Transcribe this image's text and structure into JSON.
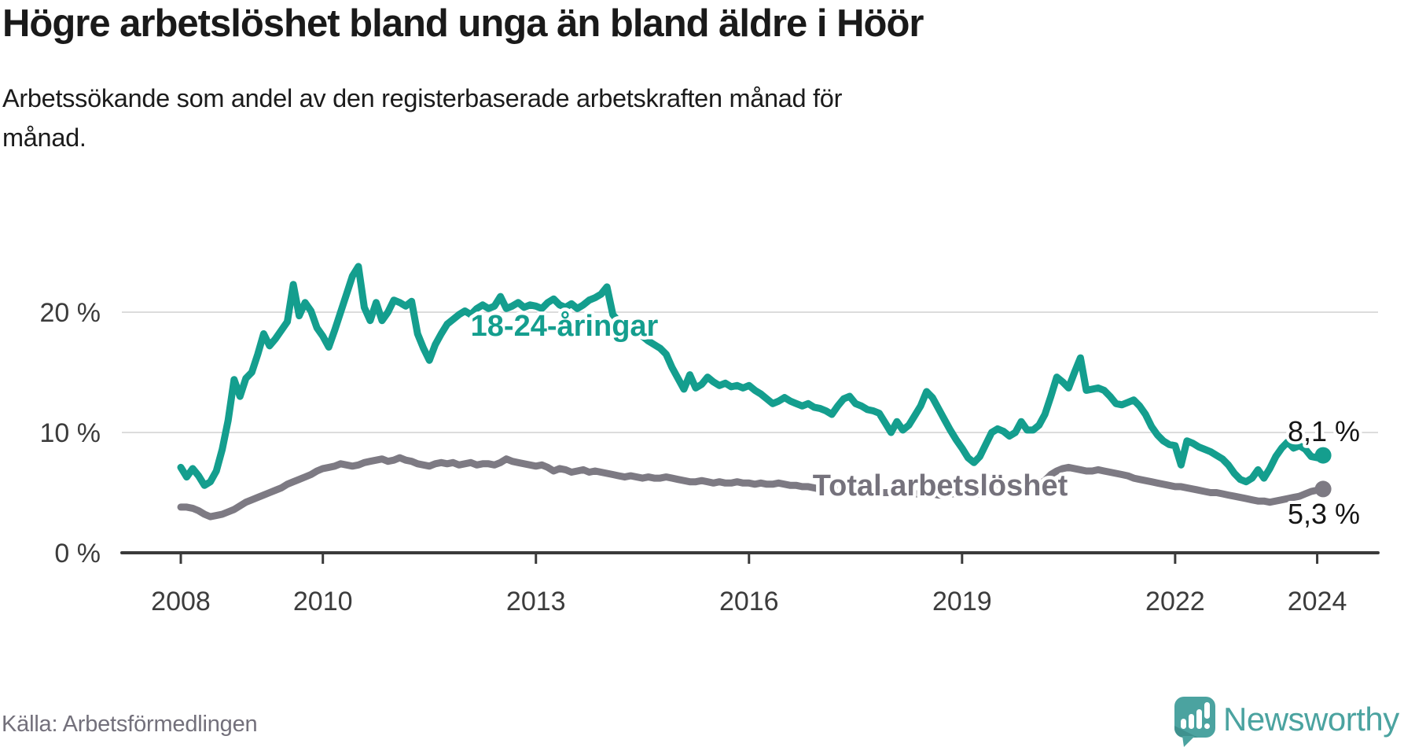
{
  "title": "Högre arbetslöshet bland unga än bland äldre i Höör",
  "subtitle_lines": [
    "Arbetssökande som andel av den registerbaserade arbetskraften månad för",
    "månad."
  ],
  "source": "Källa: Arbetsförmedlingen",
  "branding": {
    "name": "Newsworthy",
    "color": "#4ba3a0"
  },
  "chart_data": {
    "type": "line",
    "x_unit": "month",
    "x_start": "2008-01",
    "x_end": "2024-02",
    "x_tick_years": [
      2008,
      2010,
      2013,
      2016,
      2019,
      2022,
      2024
    ],
    "y_ticks": [
      {
        "label": "0 %",
        "value": 0
      },
      {
        "label": "10 %",
        "value": 10
      },
      {
        "label": "20 %",
        "value": 20
      }
    ],
    "ylim": [
      0,
      24.5
    ],
    "grid": "horizontal",
    "legend_position": "inline-labels",
    "series": [
      {
        "name": "Total arbetslöshet",
        "color": "#7d7a83",
        "label_color": "#75727c",
        "end_label": "5,3 %",
        "end_value": 5.3,
        "values": [
          3.8,
          3.8,
          3.7,
          3.5,
          3.2,
          3.0,
          3.1,
          3.2,
          3.4,
          3.6,
          3.9,
          4.2,
          4.4,
          4.6,
          4.8,
          5.0,
          5.2,
          5.4,
          5.7,
          5.9,
          6.1,
          6.3,
          6.5,
          6.8,
          7.0,
          7.1,
          7.2,
          7.4,
          7.3,
          7.2,
          7.3,
          7.5,
          7.6,
          7.7,
          7.8,
          7.6,
          7.7,
          7.9,
          7.7,
          7.6,
          7.4,
          7.3,
          7.2,
          7.4,
          7.5,
          7.4,
          7.5,
          7.3,
          7.4,
          7.5,
          7.3,
          7.4,
          7.4,
          7.3,
          7.5,
          7.8,
          7.6,
          7.5,
          7.4,
          7.3,
          7.2,
          7.3,
          7.1,
          6.8,
          7.0,
          6.9,
          6.7,
          6.8,
          6.9,
          6.7,
          6.8,
          6.7,
          6.6,
          6.5,
          6.4,
          6.3,
          6.4,
          6.3,
          6.2,
          6.3,
          6.2,
          6.2,
          6.3,
          6.2,
          6.1,
          6.0,
          5.9,
          5.9,
          6.0,
          5.9,
          5.8,
          5.9,
          5.8,
          5.8,
          5.9,
          5.8,
          5.8,
          5.7,
          5.8,
          5.7,
          5.7,
          5.8,
          5.7,
          5.6,
          5.6,
          5.5,
          5.5,
          5.4,
          5.3,
          5.3,
          5.2,
          5.3,
          5.2,
          5.4,
          5.3,
          5.2,
          5.1,
          5.1,
          5.0,
          5.0,
          5.0,
          4.9,
          4.9,
          4.8,
          4.9,
          4.9,
          5.0,
          4.9,
          4.8,
          4.8,
          4.9,
          4.9,
          4.9,
          4.8,
          4.8,
          4.9,
          5.0,
          5.1,
          5.2,
          5.2,
          5.3,
          5.3,
          5.4,
          5.5,
          5.6,
          5.7,
          6.0,
          6.5,
          6.8,
          7.0,
          7.1,
          7.0,
          6.9,
          6.8,
          6.8,
          6.9,
          6.8,
          6.7,
          6.6,
          6.5,
          6.4,
          6.2,
          6.1,
          6.0,
          5.9,
          5.8,
          5.7,
          5.6,
          5.5,
          5.5,
          5.4,
          5.3,
          5.2,
          5.1,
          5.0,
          5.0,
          4.9,
          4.8,
          4.7,
          4.6,
          4.5,
          4.4,
          4.3,
          4.3,
          4.2,
          4.3,
          4.4,
          4.5,
          4.6,
          4.7,
          4.9,
          5.1,
          5.2,
          5.3
        ]
      },
      {
        "name": "18-24-åringar",
        "color": "#149e8e",
        "label_color": "#149e8e",
        "end_label": "8,1 %",
        "end_value": 8.1,
        "values": [
          7.1,
          6.3,
          7.0,
          6.4,
          5.6,
          5.9,
          6.8,
          8.6,
          11.0,
          14.4,
          13.0,
          14.5,
          15.0,
          16.5,
          18.2,
          17.2,
          17.8,
          18.5,
          19.2,
          22.3,
          19.7,
          20.8,
          20.1,
          18.7,
          18.0,
          17.1,
          18.5,
          20.0,
          21.5,
          23.0,
          23.8,
          20.4,
          19.3,
          20.8,
          19.3,
          20.0,
          21.0,
          20.8,
          20.5,
          20.9,
          18.2,
          17.0,
          16.0,
          17.3,
          18.2,
          19.0,
          19.4,
          19.8,
          20.1,
          19.8,
          20.3,
          20.6,
          20.3,
          20.5,
          21.3,
          20.3,
          20.5,
          20.8,
          20.4,
          20.6,
          20.5,
          20.3,
          20.8,
          21.1,
          20.6,
          20.4,
          20.7,
          20.3,
          20.6,
          21.0,
          21.2,
          21.5,
          22.1,
          19.8,
          19.2,
          18.6,
          18.3,
          18.5,
          18.0,
          17.6,
          17.3,
          17.0,
          16.5,
          15.4,
          14.5,
          13.6,
          14.8,
          13.7,
          14.0,
          14.6,
          14.2,
          13.9,
          14.1,
          13.8,
          13.9,
          13.7,
          13.9,
          13.5,
          13.2,
          12.8,
          12.4,
          12.6,
          12.9,
          12.6,
          12.4,
          12.2,
          12.4,
          12.1,
          12.0,
          11.8,
          11.5,
          12.2,
          12.8,
          13.0,
          12.4,
          12.2,
          11.9,
          11.8,
          11.6,
          10.8,
          10.0,
          10.9,
          10.2,
          10.6,
          11.4,
          12.2,
          13.4,
          12.9,
          12.0,
          11.1,
          10.2,
          9.4,
          8.7,
          7.9,
          7.5,
          8.0,
          9.0,
          10.0,
          10.3,
          10.1,
          9.7,
          10.0,
          10.9,
          10.2,
          10.2,
          10.6,
          11.5,
          13.0,
          14.6,
          14.2,
          13.7,
          15.0,
          16.2,
          13.5,
          13.6,
          13.7,
          13.5,
          13.0,
          12.4,
          12.3,
          12.5,
          12.7,
          12.2,
          11.5,
          10.5,
          9.8,
          9.3,
          9.0,
          8.9,
          7.3,
          9.3,
          9.1,
          8.8,
          8.6,
          8.4,
          8.1,
          7.8,
          7.3,
          6.6,
          6.1,
          5.9,
          6.2,
          6.9,
          6.2,
          7.0,
          8.0,
          8.7,
          9.2,
          8.7,
          8.9,
          8.6,
          8.0,
          7.9,
          8.1
        ]
      }
    ]
  }
}
